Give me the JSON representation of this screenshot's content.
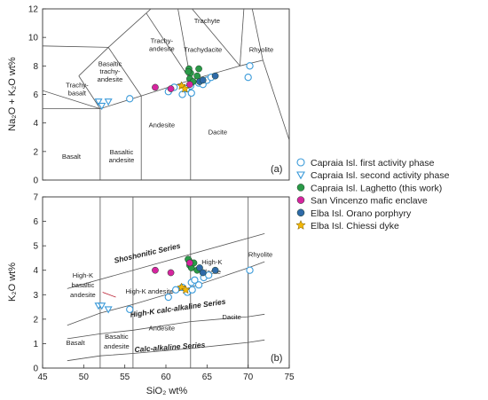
{
  "chart_data": [
    {
      "type": "scatter",
      "panel_label": "(a)",
      "title": "",
      "xlabel": "",
      "ylabel": "Na₂O + K₂O wt%",
      "xlim": [
        45,
        75
      ],
      "ylim": [
        0,
        12
      ],
      "yticks": [
        0,
        2,
        4,
        6,
        8,
        10,
        12
      ],
      "field_labels": [
        {
          "text": "Trachyte",
          "x": 65.0,
          "y": 11.0
        },
        {
          "text": "Trachy-",
          "x": 59.5,
          "y": 9.6
        },
        {
          "text": "andesite",
          "x": 59.5,
          "y": 9.05
        },
        {
          "text": "Trachydacite",
          "x": 64.5,
          "y": 9.0
        },
        {
          "text": "Rhyolite",
          "x": 71.6,
          "y": 9.0
        },
        {
          "text": "Basaltic",
          "x": 53.2,
          "y": 8.0
        },
        {
          "text": "trachy-",
          "x": 53.2,
          "y": 7.45
        },
        {
          "text": "andesite",
          "x": 53.2,
          "y": 6.9
        },
        {
          "text": "Trachy-",
          "x": 49.2,
          "y": 6.5
        },
        {
          "text": "basalt",
          "x": 49.2,
          "y": 5.95
        },
        {
          "text": "Andesite",
          "x": 59.5,
          "y": 3.7
        },
        {
          "text": "Dacite",
          "x": 66.3,
          "y": 3.2
        },
        {
          "text": "Basalt",
          "x": 48.5,
          "y": 1.5
        },
        {
          "text": "Basaltic",
          "x": 54.6,
          "y": 1.8
        },
        {
          "text": "andesite",
          "x": 54.6,
          "y": 1.25
        }
      ],
      "series": [
        {
          "name": "Capraia Isl. first activity phase",
          "points": [
            [
              55.6,
              5.7
            ],
            [
              60.3,
              6.2
            ],
            [
              61.0,
              6.5
            ],
            [
              62.0,
              6.0
            ],
            [
              62.5,
              6.4
            ],
            [
              63.0,
              6.6
            ],
            [
              63.1,
              6.1
            ],
            [
              64.0,
              6.8
            ],
            [
              64.5,
              6.7
            ],
            [
              65.0,
              7.0
            ],
            [
              65.5,
              7.2
            ],
            [
              70.2,
              8.0
            ],
            [
              70.0,
              7.2
            ]
          ]
        },
        {
          "name": "Capraia Isl. second activity phase",
          "points": [
            [
              51.8,
              5.5
            ],
            [
              52.2,
              5.2
            ],
            [
              53.0,
              5.5
            ]
          ]
        },
        {
          "name": "Capraia Isl. Laghetto (this work)",
          "points": [
            [
              62.8,
              7.8
            ],
            [
              63.0,
              7.5
            ],
            [
              62.9,
              7.1
            ],
            [
              63.3,
              6.9
            ],
            [
              64.0,
              7.8
            ],
            [
              63.8,
              7.3
            ],
            [
              62.7,
              7.6
            ]
          ]
        },
        {
          "name": "San Vincenzo mafic  enclave",
          "points": [
            [
              58.7,
              6.5
            ],
            [
              60.6,
              6.4
            ],
            [
              62.9,
              6.7
            ]
          ]
        },
        {
          "name": "Elba Isl. Orano porphyry",
          "points": [
            [
              64.1,
              6.9
            ],
            [
              64.5,
              7.0
            ],
            [
              66.0,
              7.3
            ]
          ]
        },
        {
          "name": "Elba Isl. Chiessi dyke",
          "points": [
            [
              61.9,
              6.6
            ],
            [
              62.3,
              6.4
            ]
          ]
        }
      ]
    },
    {
      "type": "scatter",
      "panel_label": "(b)",
      "title": "",
      "xlabel": "SiO₂ wt%",
      "ylabel": "K₂O wt%",
      "xlim": [
        45,
        75
      ],
      "ylim": [
        0,
        7
      ],
      "xticks": [
        45,
        50,
        55,
        60,
        65,
        70,
        75
      ],
      "yticks": [
        0,
        1,
        2,
        3,
        4,
        5,
        6,
        7
      ],
      "field_labels": [
        {
          "text": "Shoshonitic Series",
          "x": 57.8,
          "y": 4.6,
          "style": "series",
          "rotate": -13
        },
        {
          "text": "High-K calc-alkaline Series",
          "x": 61.5,
          "y": 2.35,
          "style": "series",
          "rotate": -8
        },
        {
          "text": "Calc-alkaline Series",
          "x": 60.5,
          "y": 0.75,
          "style": "series",
          "rotate": -4
        },
        {
          "text": "High-K",
          "x": 49.9,
          "y": 3.7
        },
        {
          "text": "basaltic",
          "x": 49.9,
          "y": 3.3
        },
        {
          "text": "andesite",
          "x": 49.9,
          "y": 2.9
        },
        {
          "text": "High-K andesite",
          "x": 58.0,
          "y": 3.05
        },
        {
          "text": "High-K",
          "x": 65.6,
          "y": 4.25
        },
        {
          "text": "dacite",
          "x": 65.6,
          "y": 3.85
        },
        {
          "text": "Rhyolite",
          "x": 71.5,
          "y": 4.55
        },
        {
          "text": "Andesite",
          "x": 59.5,
          "y": 1.55
        },
        {
          "text": "Dacite",
          "x": 68.0,
          "y": 2.0
        },
        {
          "text": "Basalt",
          "x": 49.0,
          "y": 0.95
        },
        {
          "text": "Basaltic",
          "x": 54.0,
          "y": 1.2
        },
        {
          "text": "andesite",
          "x": 54.0,
          "y": 0.8
        }
      ],
      "series": [
        {
          "name": "Capraia Isl. first activity phase",
          "points": [
            [
              55.6,
              2.4
            ],
            [
              60.3,
              2.9
            ],
            [
              61.2,
              3.2
            ],
            [
              62.0,
              3.3
            ],
            [
              62.6,
              3.1
            ],
            [
              63.1,
              3.5
            ],
            [
              63.2,
              3.2
            ],
            [
              63.5,
              3.6
            ],
            [
              64.0,
              3.4
            ],
            [
              64.6,
              3.7
            ],
            [
              65.2,
              3.8
            ],
            [
              70.2,
              4.0
            ]
          ]
        },
        {
          "name": "Capraia Isl. second activity phase",
          "points": [
            [
              51.8,
              2.55
            ],
            [
              52.2,
              2.55
            ],
            [
              53.0,
              2.4
            ]
          ]
        },
        {
          "name": "Capraia Isl. Laghetto (this work)",
          "points": [
            [
              62.8,
              4.4
            ],
            [
              62.9,
              4.2
            ],
            [
              63.1,
              4.1
            ],
            [
              63.4,
              4.3
            ],
            [
              63.8,
              4.0
            ],
            [
              62.7,
              4.45
            ]
          ]
        },
        {
          "name": "San Vincenzo mafic  enclave",
          "points": [
            [
              58.7,
              4.0
            ],
            [
              60.6,
              3.9
            ],
            [
              62.9,
              4.3
            ]
          ]
        },
        {
          "name": "Elba Isl. Orano porphyry",
          "points": [
            [
              64.1,
              4.1
            ],
            [
              64.5,
              3.9
            ],
            [
              66.0,
              4.0
            ]
          ]
        },
        {
          "name": "Elba Isl. Chiessi dyke",
          "points": [
            [
              61.9,
              3.3
            ],
            [
              62.4,
              3.2
            ]
          ]
        }
      ]
    }
  ],
  "legend": {
    "placement": "right",
    "items": [
      {
        "label": "Capraia Isl. first activity phase",
        "marker": "circle-open",
        "color": "#3a9ad9"
      },
      {
        "label": "Capraia Isl. second activity phase",
        "marker": "triangle-down-open",
        "color": "#3a9ad9"
      },
      {
        "label": "Capraia Isl. Laghetto (this work)",
        "marker": "circle-filled",
        "color": "#2a9a48"
      },
      {
        "label": "San Vincenzo mafic  enclave",
        "marker": "circle-filled",
        "color": "#d6249f"
      },
      {
        "label": "Elba Isl. Orano porphyry",
        "marker": "circle-filled",
        "color": "#2f6aa8"
      },
      {
        "label": "Elba Isl. Chiessi dyke",
        "marker": "star",
        "color": "#f2b705"
      }
    ]
  }
}
